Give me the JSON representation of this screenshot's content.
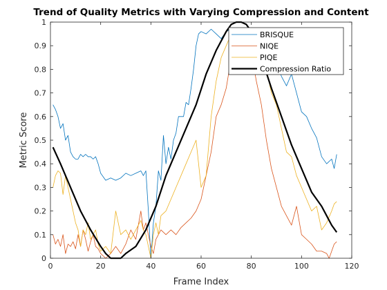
{
  "chart_data": {
    "type": "line",
    "title": "Trend of Quality Metrics with Varying Compression and Content",
    "xlabel": "Frame Index",
    "ylabel": "Metric Score",
    "xlim": [
      0,
      120
    ],
    "ylim": [
      0,
      1
    ],
    "xticks": [
      "0",
      "20",
      "40",
      "60",
      "80",
      "100",
      "120"
    ],
    "yticks": [
      "0",
      "0.1",
      "0.2",
      "0.3",
      "0.4",
      "0.5",
      "0.6",
      "0.7",
      "0.8",
      "0.9",
      "1"
    ],
    "grid": false,
    "legend_position": "top-right",
    "series": [
      {
        "name": "BRISQUE",
        "color": "#0072BD",
        "line_width": 0.8,
        "x": [
          1,
          2,
          3,
          4,
          5,
          6,
          7,
          8,
          9,
          10,
          11,
          12,
          13,
          14,
          15,
          16,
          17,
          18,
          19,
          20,
          22,
          24,
          26,
          28,
          30,
          32,
          34,
          36,
          37,
          38,
          39,
          40,
          41,
          42,
          43,
          44,
          45,
          46,
          47,
          48,
          49,
          50,
          51,
          52,
          53,
          54,
          55,
          56,
          57,
          58,
          59,
          60,
          62,
          64,
          66,
          68,
          70,
          72,
          74,
          76,
          78,
          80,
          82,
          84,
          86,
          88,
          89,
          90,
          91,
          92,
          94,
          96,
          98,
          100,
          102,
          104,
          106,
          108,
          110,
          112,
          113,
          114
        ],
        "y": [
          0.65,
          0.63,
          0.6,
          0.55,
          0.57,
          0.5,
          0.52,
          0.45,
          0.43,
          0.42,
          0.42,
          0.44,
          0.43,
          0.44,
          0.43,
          0.43,
          0.42,
          0.43,
          0.4,
          0.36,
          0.33,
          0.34,
          0.33,
          0.34,
          0.36,
          0.35,
          0.36,
          0.37,
          0.35,
          0.37,
          0.2,
          0.0,
          0.15,
          0.22,
          0.37,
          0.33,
          0.52,
          0.4,
          0.47,
          0.42,
          0.5,
          0.53,
          0.6,
          0.6,
          0.6,
          0.66,
          0.65,
          0.72,
          0.8,
          0.9,
          0.95,
          0.96,
          0.95,
          0.97,
          0.95,
          0.93,
          0.96,
          0.97,
          0.96,
          0.97,
          0.95,
          0.96,
          0.97,
          0.93,
          0.9,
          0.8,
          0.83,
          0.78,
          0.8,
          0.77,
          0.73,
          0.78,
          0.7,
          0.62,
          0.6,
          0.55,
          0.51,
          0.43,
          0.4,
          0.42,
          0.38,
          0.44
        ]
      },
      {
        "name": "NIQE",
        "color": "#D95319",
        "line_width": 0.8,
        "x": [
          1,
          2,
          3,
          4,
          5,
          6,
          7,
          8,
          9,
          10,
          11,
          12,
          13,
          14,
          15,
          16,
          17,
          18,
          19,
          20,
          22,
          24,
          26,
          28,
          30,
          32,
          34,
          36,
          37,
          38,
          39,
          40,
          41,
          42,
          43,
          44,
          46,
          48,
          50,
          52,
          54,
          56,
          58,
          60,
          62,
          64,
          66,
          68,
          70,
          72,
          74,
          76,
          78,
          80,
          82,
          84,
          86,
          88,
          90,
          92,
          94,
          96,
          98,
          100,
          102,
          104,
          106,
          108,
          110,
          111,
          112,
          113,
          114
        ],
        "y": [
          0.1,
          0.06,
          0.08,
          0.05,
          0.1,
          0.02,
          0.06,
          0.05,
          0.07,
          0.04,
          0.1,
          0.05,
          0.12,
          0.08,
          0.03,
          0.07,
          0.1,
          0.05,
          0.04,
          0.02,
          0.0,
          0.02,
          0.05,
          0.02,
          0.06,
          0.12,
          0.08,
          0.2,
          0.12,
          0.15,
          0.1,
          0.05,
          0.02,
          0.08,
          0.1,
          0.12,
          0.1,
          0.12,
          0.1,
          0.13,
          0.15,
          0.17,
          0.2,
          0.25,
          0.35,
          0.45,
          0.6,
          0.65,
          0.72,
          0.85,
          0.9,
          0.93,
          0.97,
          0.87,
          0.75,
          0.65,
          0.5,
          0.38,
          0.3,
          0.22,
          0.18,
          0.14,
          0.22,
          0.1,
          0.08,
          0.06,
          0.03,
          0.03,
          0.02,
          0.0,
          0.03,
          0.06,
          0.07
        ]
      },
      {
        "name": "PIQE",
        "color": "#EDB120",
        "line_width": 0.8,
        "x": [
          1,
          2,
          3,
          4,
          5,
          6,
          7,
          8,
          9,
          10,
          11,
          12,
          13,
          14,
          15,
          16,
          17,
          18,
          19,
          20,
          22,
          24,
          26,
          28,
          30,
          32,
          34,
          36,
          37,
          38,
          39,
          40,
          41,
          42,
          43,
          44,
          46,
          48,
          50,
          52,
          54,
          56,
          58,
          60,
          62,
          64,
          66,
          68,
          70,
          72,
          74,
          76,
          78,
          80,
          82,
          84,
          86,
          88,
          90,
          92,
          94,
          96,
          98,
          100,
          102,
          104,
          106,
          108,
          110,
          112,
          113,
          114
        ],
        "y": [
          0.3,
          0.35,
          0.37,
          0.36,
          0.27,
          0.35,
          0.3,
          0.25,
          0.2,
          0.15,
          0.12,
          0.05,
          0.12,
          0.1,
          0.15,
          0.08,
          0.1,
          0.12,
          0.06,
          0.03,
          0.05,
          0.02,
          0.2,
          0.1,
          0.12,
          0.08,
          0.12,
          0.16,
          0.12,
          0.1,
          0.05,
          0.0,
          0.1,
          0.15,
          0.1,
          0.18,
          0.2,
          0.25,
          0.3,
          0.35,
          0.4,
          0.45,
          0.5,
          0.3,
          0.35,
          0.6,
          0.75,
          0.85,
          0.9,
          0.95,
          0.93,
          0.97,
          0.95,
          0.92,
          0.88,
          0.9,
          0.8,
          0.7,
          0.65,
          0.55,
          0.45,
          0.43,
          0.35,
          0.3,
          0.25,
          0.2,
          0.22,
          0.12,
          0.15,
          0.2,
          0.23,
          0.24
        ]
      },
      {
        "name": "Compression Ratio",
        "color": "#000000",
        "line_width": 2.2,
        "x": [
          1,
          4,
          8,
          12,
          16,
          20,
          22,
          24,
          26,
          28,
          30,
          34,
          38,
          42,
          46,
          50,
          54,
          58,
          62,
          66,
          70,
          72,
          74,
          76,
          78,
          80,
          84,
          88,
          92,
          96,
          100,
          104,
          108,
          110,
          112,
          114
        ],
        "y": [
          0.47,
          0.4,
          0.3,
          0.2,
          0.12,
          0.05,
          0.02,
          0.0,
          0.0,
          0.0,
          0.02,
          0.05,
          0.12,
          0.22,
          0.35,
          0.45,
          0.55,
          0.65,
          0.78,
          0.88,
          0.96,
          0.99,
          1.0,
          1.0,
          0.99,
          0.96,
          0.85,
          0.72,
          0.6,
          0.48,
          0.38,
          0.28,
          0.22,
          0.18,
          0.14,
          0.11
        ]
      }
    ]
  }
}
